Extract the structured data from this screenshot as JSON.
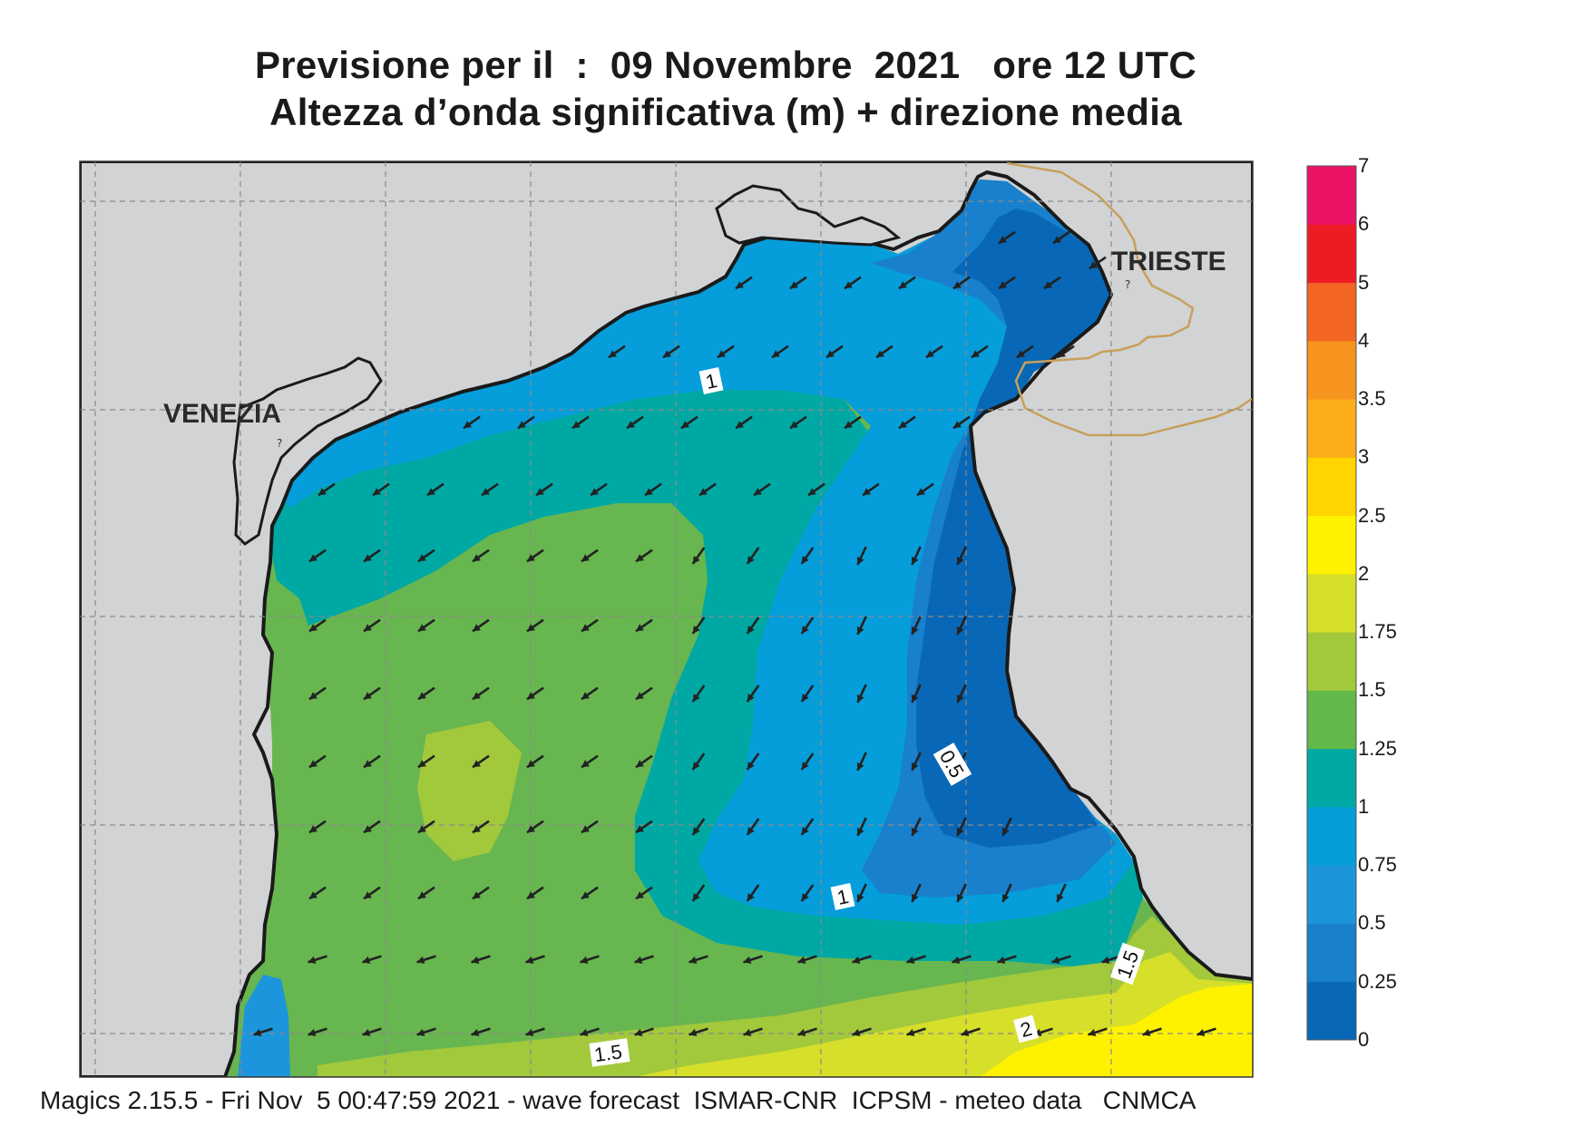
{
  "title_line1": "Previsione per il  :  09 Novembre  2021   ore 12 UTC",
  "title_line2": "Altezza d’onda significativa (m) + direzione media",
  "footer": "Magics 2.15.5 - Fri Nov  5 00:47:59 2021 - wave forecast  ISMAR-CNR  ICPSM - meteo data   CNMCA",
  "cities": {
    "venezia": "VENEZIA",
    "trieste": "TRIESTE"
  },
  "contour_labels": {
    "north": "1",
    "east": "0.5",
    "central": "1",
    "south_east": "1.5",
    "south": "1.5",
    "south_2": "2"
  },
  "colorbar": {
    "levels": [
      "0",
      "0.25",
      "0.5",
      "0.75",
      "1",
      "1.25",
      "1.5",
      "1.75",
      "2",
      "2.5",
      "3",
      "3.5",
      "4",
      "5",
      "6",
      "7"
    ],
    "colors": [
      "#0867b6",
      "#1880cc",
      "#1d95dc",
      "#069ddb",
      "#00a8a4",
      "#62b848",
      "#a2c83c",
      "#d6df2a",
      "#fff200",
      "#ffd400",
      "#fbae17",
      "#f7941d",
      "#f26522",
      "#ed1c24",
      "#ec1266"
    ]
  },
  "colors": {
    "land": "#d2d3d5",
    "sea_base": "#68b64f",
    "coast": "#1a1a1a",
    "border": "#c8a05a",
    "arrow": "#222222"
  },
  "wave_direction": "toward south-west"
}
